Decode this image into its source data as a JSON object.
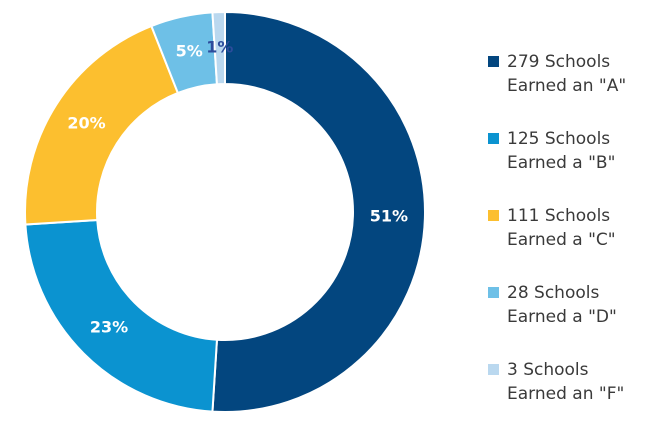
{
  "chart_data": {
    "type": "donut",
    "categories": [
      "279 Schools Earned an \"A\"",
      "125 Schools Earned a \"B\"",
      "111 Schools Earned a \"C\"",
      "28 Schools Earned a \"D\"",
      "3 Schools Earned an \"F\""
    ],
    "values": [
      51,
      23,
      20,
      5,
      1
    ],
    "value_labels": [
      "51%",
      "23%",
      "20%",
      "5%",
      "1%"
    ],
    "colors": [
      "#03467f",
      "#0b93d0",
      "#fcbf2f",
      "#6ec0e7",
      "#bad8ef"
    ],
    "value_label_colors": [
      "#ffffff",
      "#ffffff",
      "#ffffff",
      "#ffffff",
      "#2d4c9c"
    ]
  }
}
